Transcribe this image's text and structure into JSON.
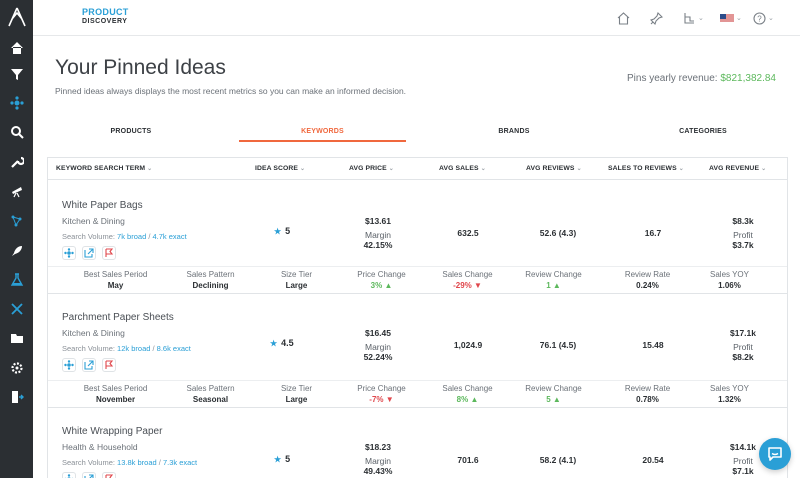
{
  "brand": {
    "line1": "PRODUCT",
    "line2": "DISCOVERY"
  },
  "header": {
    "flag_icon": "us-flag-icon",
    "help_icon": "help-circle-icon"
  },
  "page": {
    "title": "Your Pinned Ideas",
    "subtitle": "Pinned ideas always displays the most recent metrics so you can make an informed decision.",
    "revenue_label": "Pins yearly revenue:",
    "revenue_value": "$821,382.84"
  },
  "tabs": [
    {
      "label": "PRODUCTS",
      "active": false
    },
    {
      "label": "KEYWORDS",
      "active": true
    },
    {
      "label": "BRANDS",
      "active": false
    },
    {
      "label": "CATEGORIES",
      "active": false
    }
  ],
  "columns": [
    "KEYWORD SEARCH TERM",
    "IDEA SCORE",
    "AVG PRICE",
    "AVG SALES",
    "AVG REVIEWS",
    "SALES TO REVIEWS",
    "AVG REVENUE"
  ],
  "stat_labels": [
    "Best Sales Period",
    "Sales Pattern",
    "Size Tier",
    "Price Change",
    "Sales Change",
    "Review Change",
    "Review Rate",
    "Sales YOY"
  ],
  "labels": {
    "margin": "Margin",
    "profit": "Profit",
    "search_volume": "Search Volume:"
  },
  "rows": [
    {
      "name": "White Paper Bags",
      "category": "Kitchen & Dining",
      "sv_broad": "7k broad",
      "sv_sep": " / ",
      "sv_exact": "4.7k exact",
      "score": "5",
      "avg_price": "$13.61",
      "margin": "42.15%",
      "avg_sales": "632.5",
      "avg_reviews": "52.6 (4.3)",
      "sales_to_reviews": "16.7",
      "avg_revenue": "$8.3k",
      "profit": "$3.7k",
      "stats": {
        "best_sales_period": "May",
        "sales_pattern": "Declining",
        "size_tier": "Large",
        "price_change": "3%",
        "price_dir": "up",
        "sales_change": "-29%",
        "sales_dir": "down",
        "review_change": "1",
        "review_dir": "up",
        "review_rate": "0.24%",
        "sales_yoy": "1.06%"
      }
    },
    {
      "name": "Parchment Paper Sheets",
      "category": "Kitchen & Dining",
      "sv_broad": "12k broad",
      "sv_sep": " / ",
      "sv_exact": "8.6k exact",
      "score": "4.5",
      "avg_price": "$16.45",
      "margin": "52.24%",
      "avg_sales": "1,024.9",
      "avg_reviews": "76.1 (4.5)",
      "sales_to_reviews": "15.48",
      "avg_revenue": "$17.1k",
      "profit": "$8.2k",
      "stats": {
        "best_sales_period": "November",
        "sales_pattern": "Seasonal",
        "size_tier": "Large",
        "price_change": "-7%",
        "price_dir": "down",
        "sales_change": "8%",
        "sales_dir": "up",
        "review_change": "5",
        "review_dir": "up",
        "review_rate": "0.78%",
        "sales_yoy": "1.32%"
      }
    },
    {
      "name": "White Wrapping Paper",
      "category": "Health & Household",
      "sv_broad": "13.8k broad",
      "sv_sep": " / ",
      "sv_exact": "7.3k exact",
      "score": "5",
      "avg_price": "$18.23",
      "margin": "49.43%",
      "avg_sales": "701.6",
      "avg_reviews": "58.2 (4.1)",
      "sales_to_reviews": "20.54",
      "avg_revenue": "$14.1k",
      "profit": "$7.1k"
    }
  ],
  "colors": {
    "accent": "#2a9fd6",
    "active_tab": "#f0683e",
    "positive": "#5cb85c",
    "negative": "#e0474c",
    "sidebar": "#2b2f33"
  }
}
